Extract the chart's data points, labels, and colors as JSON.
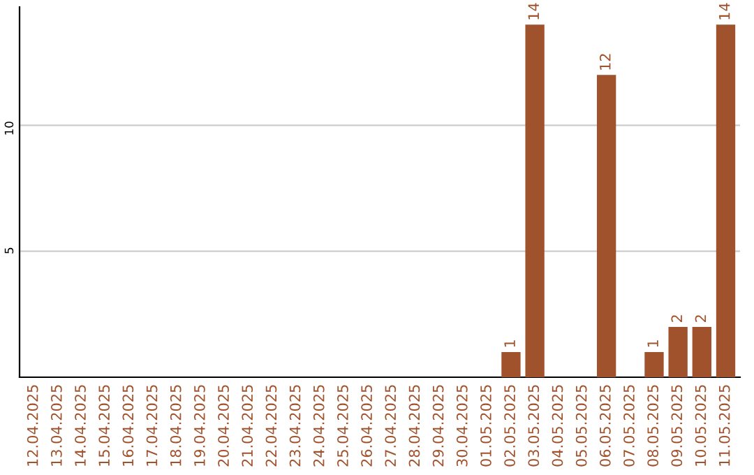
{
  "chart_data": {
    "type": "bar",
    "categories": [
      "12.04.2025",
      "13.04.2025",
      "14.04.2025",
      "15.04.2025",
      "16.04.2025",
      "17.04.2025",
      "18.04.2025",
      "19.04.2025",
      "20.04.2025",
      "21.04.2025",
      "22.04.2025",
      "23.04.2025",
      "24.04.2025",
      "25.04.2025",
      "26.04.2025",
      "27.04.2025",
      "28.04.2025",
      "29.04.2025",
      "30.04.2025",
      "01.05.2025",
      "02.05.2025",
      "03.05.2025",
      "04.05.2025",
      "05.05.2025",
      "06.05.2025",
      "07.05.2025",
      "08.05.2025",
      "09.05.2025",
      "10.05.2025",
      "11.05.2025"
    ],
    "values": [
      0,
      0,
      0,
      0,
      0,
      0,
      0,
      0,
      0,
      0,
      0,
      0,
      0,
      0,
      0,
      0,
      0,
      0,
      0,
      0,
      1,
      14,
      0,
      0,
      12,
      0,
      1,
      2,
      2,
      14
    ],
    "value_labels": [
      null,
      null,
      null,
      null,
      null,
      null,
      null,
      null,
      null,
      null,
      null,
      null,
      null,
      null,
      null,
      null,
      null,
      null,
      null,
      null,
      "1",
      "14",
      null,
      null,
      "12",
      null,
      "1",
      "2",
      "2",
      "14"
    ],
    "color": "#a0522d",
    "ylim": [
      0,
      14.7
    ],
    "yticks": [
      5,
      10
    ],
    "grid": "y"
  }
}
